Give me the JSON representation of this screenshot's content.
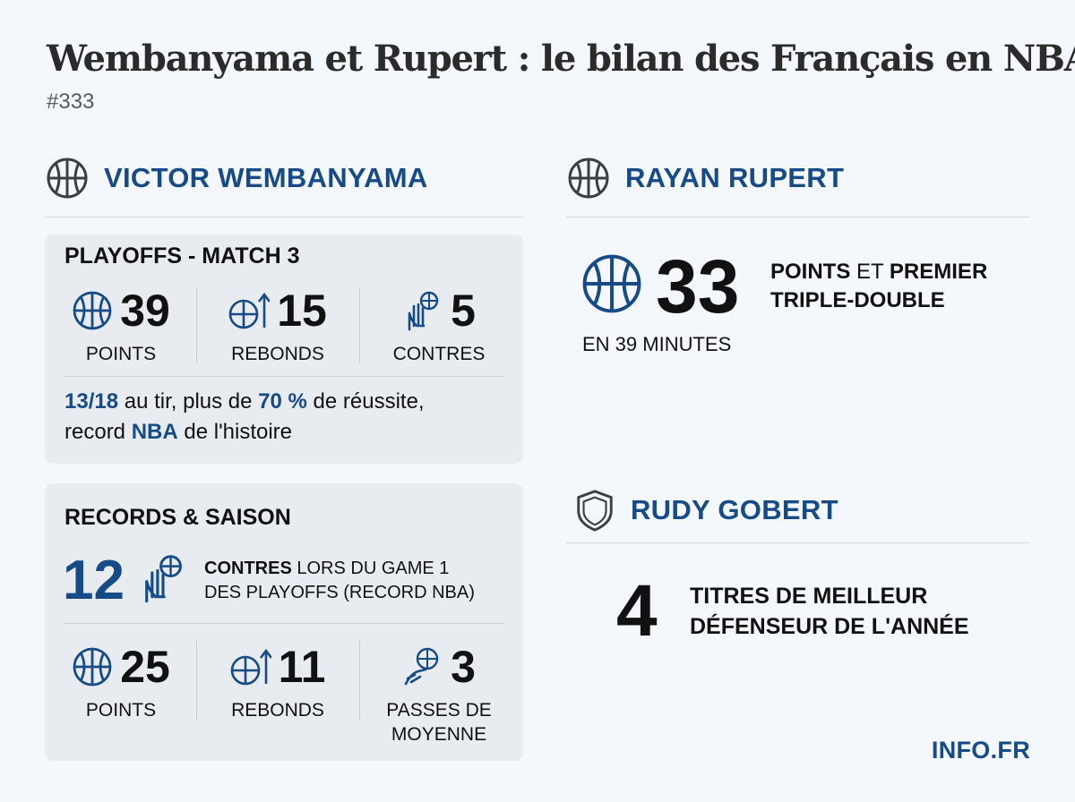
{
  "header": {
    "title": "Wembanyama et Rupert : le bilan des Français en NBA",
    "issue": "#333"
  },
  "wembanyama": {
    "name": "VICTOR WEMBANYAMA",
    "playoffs": {
      "title": "PLAYOFFS - MATCH 3",
      "stats": [
        {
          "value": "39",
          "label": "POINTS",
          "icon": "basketball-icon"
        },
        {
          "value": "15",
          "label": "REBONDS",
          "icon": "rebound-icon"
        },
        {
          "value": "5",
          "label": "CONTRES",
          "icon": "block-hand-icon"
        }
      ],
      "note": {
        "a": "13/18",
        "b": " au tir, plus de ",
        "c": "70 %",
        "d": " de réussite,",
        "e": "record ",
        "f": "NBA",
        "g": " de l'histoire"
      }
    },
    "records": {
      "title": "RECORDS & SAISON",
      "big_value": "12",
      "big_bold": "CONTRES",
      "big_line1_rest": " LORS DU GAME 1",
      "big_line2": "DES PLAYOFFS (RECORD NBA)",
      "stats": [
        {
          "value": "25",
          "label": "POINTS",
          "icon": "basketball-icon"
        },
        {
          "value": "11",
          "label": "REBONDS",
          "icon": "rebound-icon"
        },
        {
          "value": "3",
          "label1": "PASSES DE",
          "label2": "MOYENNE",
          "icon": "pass-hand-icon"
        }
      ]
    }
  },
  "rupert": {
    "name": "RAYAN RUPERT",
    "value": "33",
    "text1_bold": "POINTS",
    "text1_mid": " ET ",
    "text1_bold2": "PREMIER",
    "text2": "TRIPLE-DOUBLE",
    "minutes": "EN 39 MINUTES"
  },
  "gobert": {
    "name": "RUDY GOBERT",
    "value": "4",
    "line1": "TITRES DE MEILLEUR",
    "line2": "DÉFENSEUR DE L'ANNÉE"
  },
  "brand": "INFO.FR",
  "colors": {
    "accent": "#164b87",
    "card": "#e8ebf0",
    "background": "#f4f7fb"
  }
}
